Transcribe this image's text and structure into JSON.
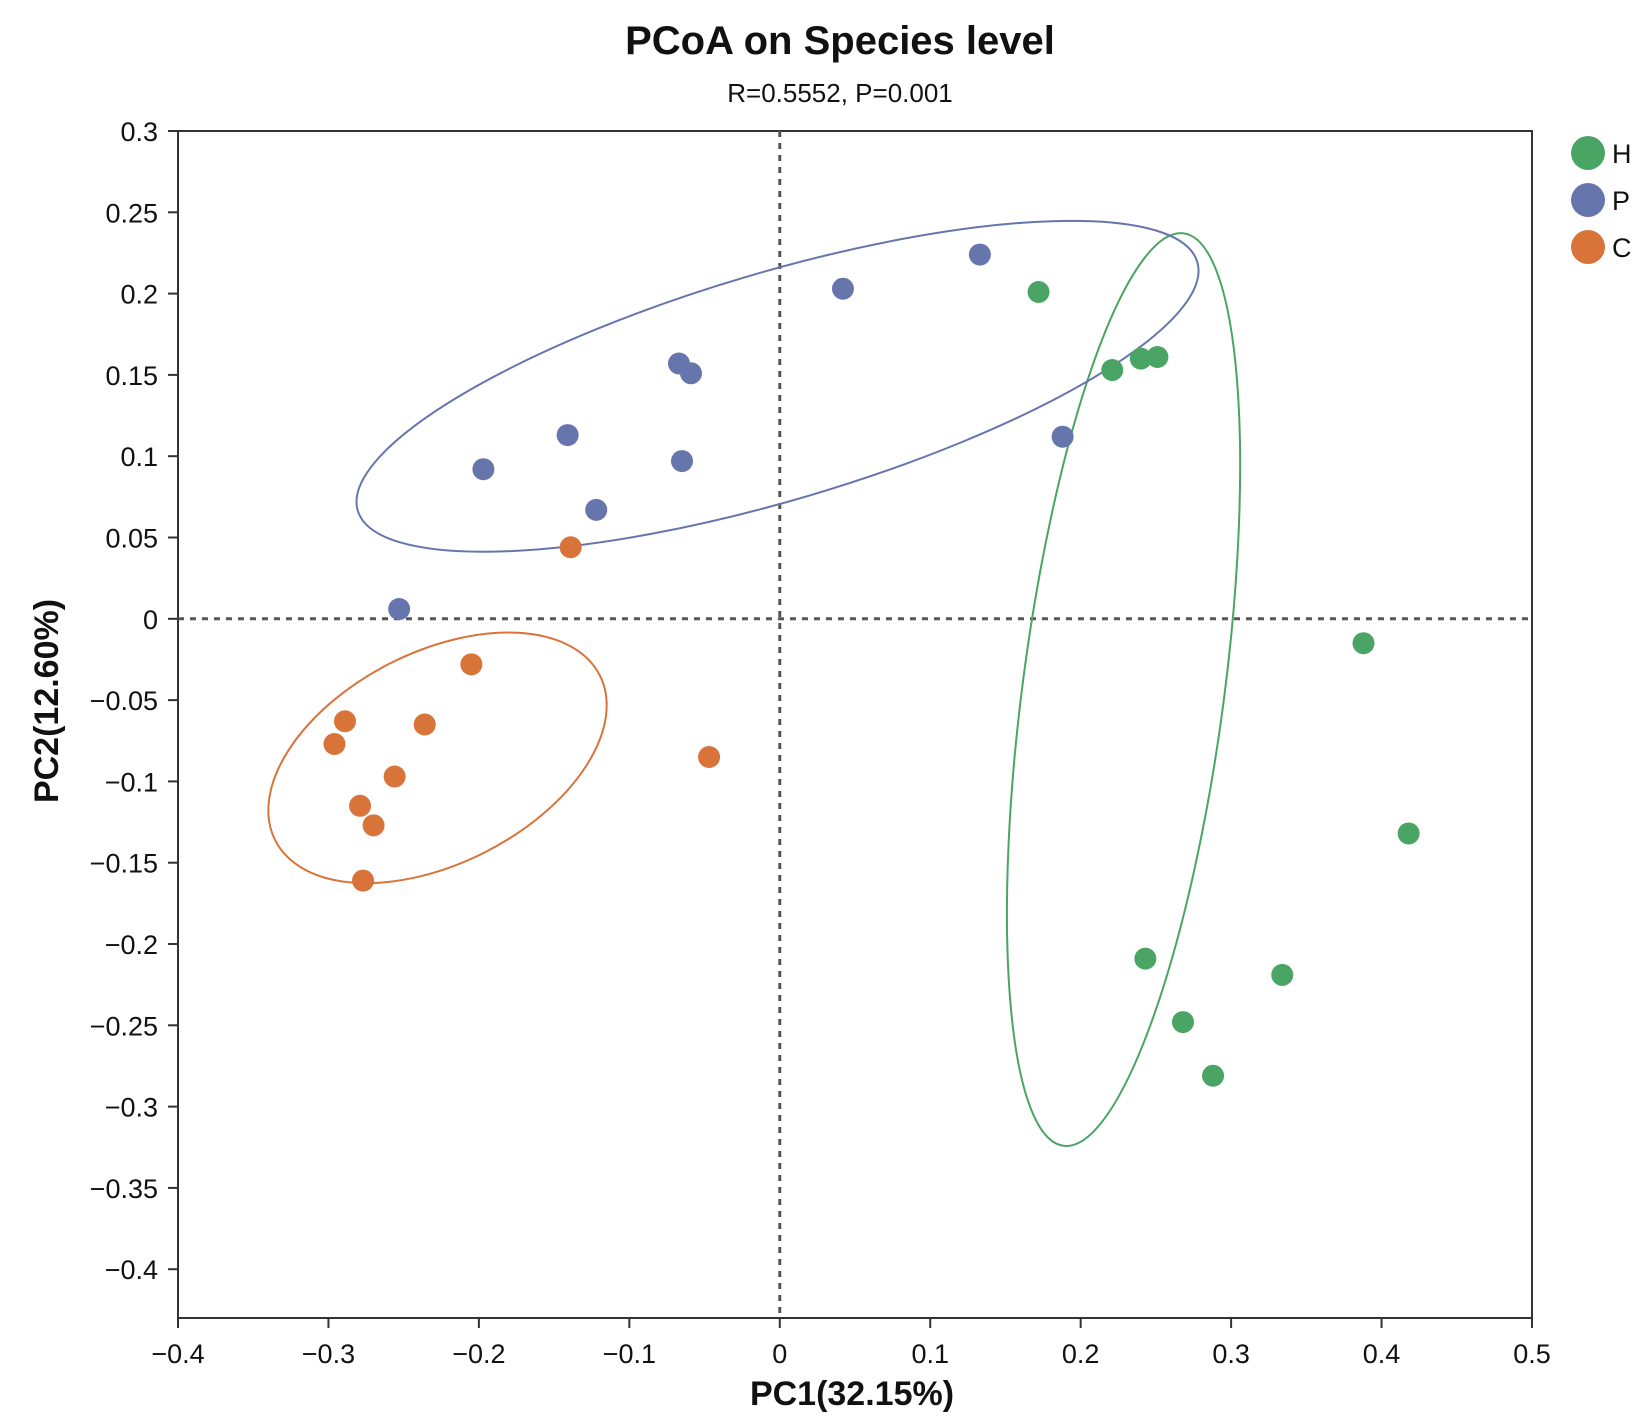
{
  "chart_data": {
    "type": "scatter",
    "title": "PCoA on Species level",
    "subtitle": "R=0.5552, P=0.001",
    "xlabel": "PC1(32.15%)",
    "ylabel": "PC2(12.60%)",
    "xlim": [
      -0.4,
      0.5
    ],
    "ylim": [
      -0.43,
      0.3
    ],
    "xticks": [
      -0.4,
      -0.3,
      -0.2,
      -0.1,
      0,
      0.1,
      0.2,
      0.3,
      0.4,
      0.5
    ],
    "xtick_labels": [
      "−0.4",
      "−0.3",
      "−0.2",
      "−0.1",
      "0",
      "0.1",
      "0.2",
      "0.3",
      "0.4",
      "0.5"
    ],
    "yticks": [
      0.3,
      0.25,
      0.2,
      0.15,
      0.1,
      0.05,
      0,
      -0.05,
      -0.1,
      -0.15,
      -0.2,
      -0.25,
      -0.3,
      -0.35,
      -0.4
    ],
    "ytick_labels": [
      "0.3",
      "0.25",
      "0.2",
      "0.15",
      "0.1",
      "0.05",
      "0",
      "−0.05",
      "−0.1",
      "−0.15",
      "−0.2",
      "−0.25",
      "−0.3",
      "−0.35",
      "−0.4"
    ],
    "reference_lines": {
      "x": 0,
      "y": 0
    },
    "grid": false,
    "legend_position": "top-right",
    "series": [
      {
        "name": "H",
        "color": "#4aa564",
        "points": [
          [
            0.172,
            0.201
          ],
          [
            0.221,
            0.153
          ],
          [
            0.24,
            0.16
          ],
          [
            0.251,
            0.161
          ],
          [
            0.388,
            -0.015
          ],
          [
            0.418,
            -0.132
          ],
          [
            0.243,
            -0.209
          ],
          [
            0.334,
            -0.219
          ],
          [
            0.268,
            -0.248
          ],
          [
            0.288,
            -0.281
          ]
        ],
        "ellipse": {
          "cx": 0.2285,
          "cy": -0.0435,
          "rx": 0.067,
          "ry": 0.283,
          "angle_deg": 7.5
        }
      },
      {
        "name": "P",
        "color": "#6775ad",
        "points": [
          [
            0.133,
            0.224
          ],
          [
            0.042,
            0.203
          ],
          [
            -0.067,
            0.157
          ],
          [
            -0.059,
            0.151
          ],
          [
            -0.141,
            0.113
          ],
          [
            -0.197,
            0.092
          ],
          [
            -0.065,
            0.097
          ],
          [
            -0.122,
            0.067
          ],
          [
            0.188,
            0.112
          ],
          [
            -0.253,
            0.006
          ]
        ],
        "ellipse": {
          "cx": -0.0015,
          "cy": 0.143,
          "rx": 0.291,
          "ry": 0.07,
          "angle_deg": -16.5
        }
      },
      {
        "name": "C",
        "color": "#d8733a",
        "points": [
          [
            -0.139,
            0.044
          ],
          [
            -0.205,
            -0.028
          ],
          [
            -0.289,
            -0.063
          ],
          [
            -0.236,
            -0.065
          ],
          [
            -0.296,
            -0.077
          ],
          [
            -0.256,
            -0.097
          ],
          [
            -0.279,
            -0.115
          ],
          [
            -0.27,
            -0.127
          ],
          [
            -0.277,
            -0.161
          ],
          [
            -0.047,
            -0.085
          ]
        ],
        "ellipse": {
          "cx": -0.2275,
          "cy": -0.0855,
          "rx": 0.121,
          "ry": 0.065,
          "angle_deg": -27
        }
      }
    ]
  }
}
